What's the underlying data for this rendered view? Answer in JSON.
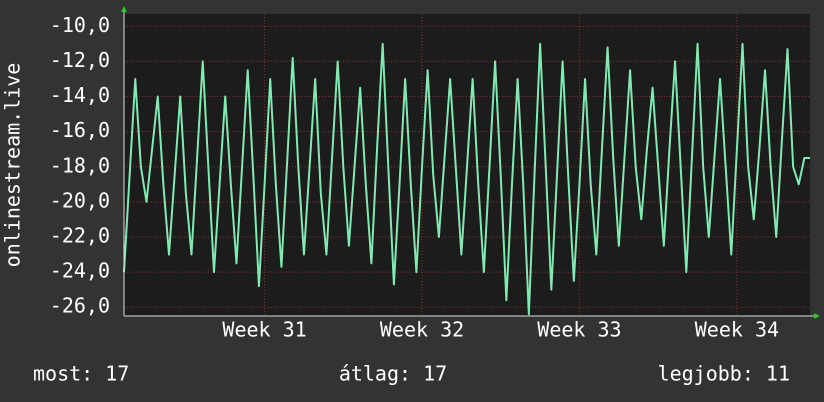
{
  "chart_data": {
    "type": "line",
    "y_label": "onlinestream.live",
    "color": "#80eab0",
    "grid": true,
    "ylim": [
      -26.5,
      -9.3
    ],
    "yticks": [
      {
        "value": -10,
        "label": "-10,0"
      },
      {
        "value": -12,
        "label": "-12,0"
      },
      {
        "value": -14,
        "label": "-14,0"
      },
      {
        "value": -16,
        "label": "-16,0"
      },
      {
        "value": -18,
        "label": "-18,0"
      },
      {
        "value": -20,
        "label": "-20,0"
      },
      {
        "value": -22,
        "label": "-22,0"
      },
      {
        "value": -24,
        "label": "-24,0"
      },
      {
        "value": -26,
        "label": "-26,0"
      }
    ],
    "xlim": [
      0,
      122
    ],
    "xticks": [
      {
        "value": 25,
        "label": "Week 31"
      },
      {
        "value": 53,
        "label": "Week 32"
      },
      {
        "value": 81,
        "label": "Week 33"
      },
      {
        "value": 109,
        "label": "Week 34"
      }
    ],
    "values": [
      -24,
      -18.5,
      -13,
      -18,
      -20,
      -17,
      -14,
      -19,
      -23,
      -18.5,
      -14,
      -19.5,
      -23,
      -17.5,
      -12,
      -18,
      -24,
      -19,
      -14,
      -19,
      -23.5,
      -18,
      -12.5,
      -18.5,
      -24.8,
      -19,
      -13,
      -19,
      -23.7,
      -17.8,
      -11.8,
      -18,
      -23,
      -18,
      -13,
      -19.5,
      -23,
      -17.5,
      -12,
      -18,
      -22.5,
      -18,
      -13.5,
      -19,
      -23.5,
      -17,
      -11,
      -18,
      -24.7,
      -19,
      -13,
      -19,
      -24,
      -18,
      -12.5,
      -18.5,
      -22,
      -17.5,
      -13,
      -18,
      -23,
      -18,
      -13,
      -19,
      -24,
      -18,
      -12,
      -18.5,
      -25.6,
      -19,
      -13,
      -19,
      -26.4,
      -18.5,
      -11,
      -18,
      -25,
      -18.5,
      -12,
      -18.5,
      -24.5,
      -19,
      -13,
      -19,
      -23,
      -17,
      -11.2,
      -17.5,
      -22.5,
      -17.5,
      -12.5,
      -18,
      -21,
      -17,
      -13.5,
      -18,
      -22.5,
      -17,
      -12,
      -18,
      -24,
      -17.5,
      -11,
      -18,
      -22,
      -17.5,
      -13,
      -18,
      -23,
      -17,
      -11,
      -18,
      -21,
      -17,
      -12.5,
      -18,
      -22,
      -16.5,
      -11.3,
      -18,
      -19,
      -17.5,
      -17.5
    ],
    "footer": [
      "most: 17",
      "átlag: 17",
      "legjobb: 11"
    ]
  }
}
